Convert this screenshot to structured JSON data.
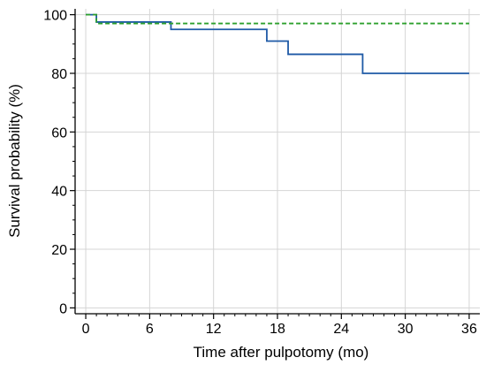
{
  "chart_data": {
    "type": "line",
    "title": "",
    "xlabel": "Time after pulpotomy (mo)",
    "ylabel": "Survival probability (%)",
    "xlim": [
      -1,
      37
    ],
    "ylim": [
      -2,
      102
    ],
    "xticks": [
      0,
      6,
      12,
      18,
      24,
      30,
      36
    ],
    "yticks": [
      0,
      20,
      40,
      60,
      80,
      100
    ],
    "grid": true,
    "legend": "none",
    "step": true,
    "series": [
      {
        "name": "",
        "color": "#1f5aa6",
        "style": "solid",
        "x": [
          0,
          1,
          8,
          17,
          19,
          26,
          36
        ],
        "y": [
          100,
          97.5,
          95,
          91,
          86.5,
          80,
          80
        ]
      },
      {
        "name": "",
        "color": "#2ca02c",
        "style": "dashed",
        "x": [
          0,
          1,
          36
        ],
        "y": [
          100,
          97,
          97
        ]
      }
    ]
  }
}
